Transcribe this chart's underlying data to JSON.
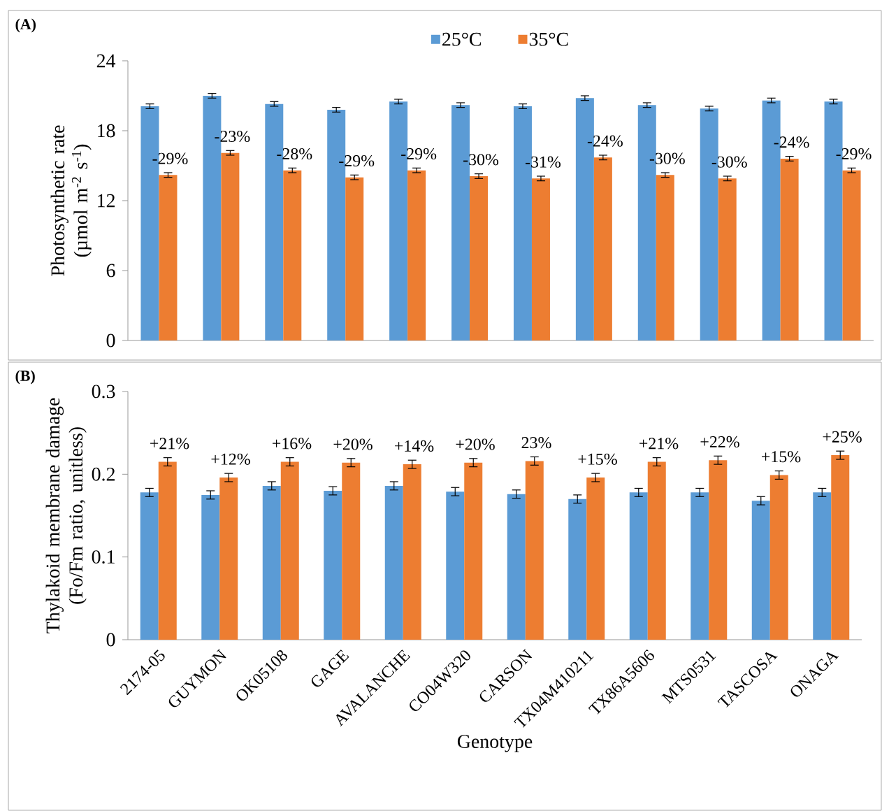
{
  "chart_data": [
    {
      "type": "bar",
      "title": "(A)",
      "ylabel": "Photosynthetic rate (µmol m$^{-2}$ s$^{-1}$)",
      "categories": [
        null,
        null,
        null,
        null,
        null,
        null,
        null,
        null,
        null,
        null,
        null,
        null
      ],
      "series": [
        {
          "name": "25°C",
          "color": "#5b9bd5",
          "values": [
            20.1,
            21.0,
            20.3,
            19.8,
            20.5,
            20.2,
            20.1,
            20.8,
            20.2,
            19.9,
            20.6,
            20.5
          ],
          "errors": [
            0.2,
            0.2,
            0.2,
            0.2,
            0.2,
            0.2,
            0.2,
            0.2,
            0.2,
            0.2,
            0.2,
            0.2
          ]
        },
        {
          "name": "35°C",
          "color": "#ed7d31",
          "values": [
            14.2,
            16.1,
            14.6,
            14.0,
            14.6,
            14.1,
            13.9,
            15.7,
            14.2,
            13.9,
            15.6,
            14.6
          ],
          "errors": [
            0.2,
            0.2,
            0.2,
            0.2,
            0.2,
            0.2,
            0.2,
            0.2,
            0.2,
            0.2,
            0.2,
            0.2
          ]
        }
      ],
      "ylim": [
        0,
        24
      ],
      "yticks": [
        0,
        6,
        12,
        18,
        24
      ],
      "tick_labels": "y",
      "legend": "top",
      "annotations": [
        "-29%",
        "-23%",
        "-28%",
        "-29%",
        "-29%",
        "-30%",
        "-31%",
        "-24%",
        "-30%",
        "-30%",
        "-24%",
        "-29%"
      ]
    },
    {
      "type": "bar",
      "title": "(B)",
      "ylabel": "Thylakoid membrane damage (Fo/Fm ratio, unitless)",
      "xlabel": "Genotype",
      "categories": [
        "2174-05",
        "GUYMON",
        "OK05108",
        "GAGE",
        "AVALANCHE",
        "CO04W320",
        "CARSON",
        "TX04M410211",
        "TX86A5606",
        "MTS0531",
        "TASCOSA",
        "ONAGA"
      ],
      "series": [
        {
          "color": "#5b9bd5",
          "values": [
            0.178,
            0.175,
            0.186,
            0.18,
            0.186,
            0.179,
            0.176,
            0.17,
            0.178,
            0.178,
            0.168,
            0.178
          ],
          "errors": [
            0.005,
            0.005,
            0.005,
            0.005,
            0.005,
            0.005,
            0.005,
            0.005,
            0.005,
            0.005,
            0.005,
            0.005
          ]
        },
        {
          "color": "#ed7d31",
          "values": [
            0.215,
            0.196,
            0.215,
            0.214,
            0.212,
            0.214,
            0.216,
            0.196,
            0.215,
            0.217,
            0.199,
            0.223
          ],
          "errors": [
            0.005,
            0.005,
            0.005,
            0.005,
            0.005,
            0.005,
            0.005,
            0.005,
            0.005,
            0.005,
            0.005,
            0.005
          ]
        }
      ],
      "ylim": [
        0,
        0.3
      ],
      "yticks": [
        0,
        0.1,
        0.2,
        0.3
      ],
      "annotations": [
        "+21%",
        "+12%",
        "+16%",
        "+20%",
        "+14%",
        "+20%",
        "23%",
        "+15%",
        "+21%",
        "+22%",
        "+15%",
        "+25%"
      ]
    }
  ]
}
